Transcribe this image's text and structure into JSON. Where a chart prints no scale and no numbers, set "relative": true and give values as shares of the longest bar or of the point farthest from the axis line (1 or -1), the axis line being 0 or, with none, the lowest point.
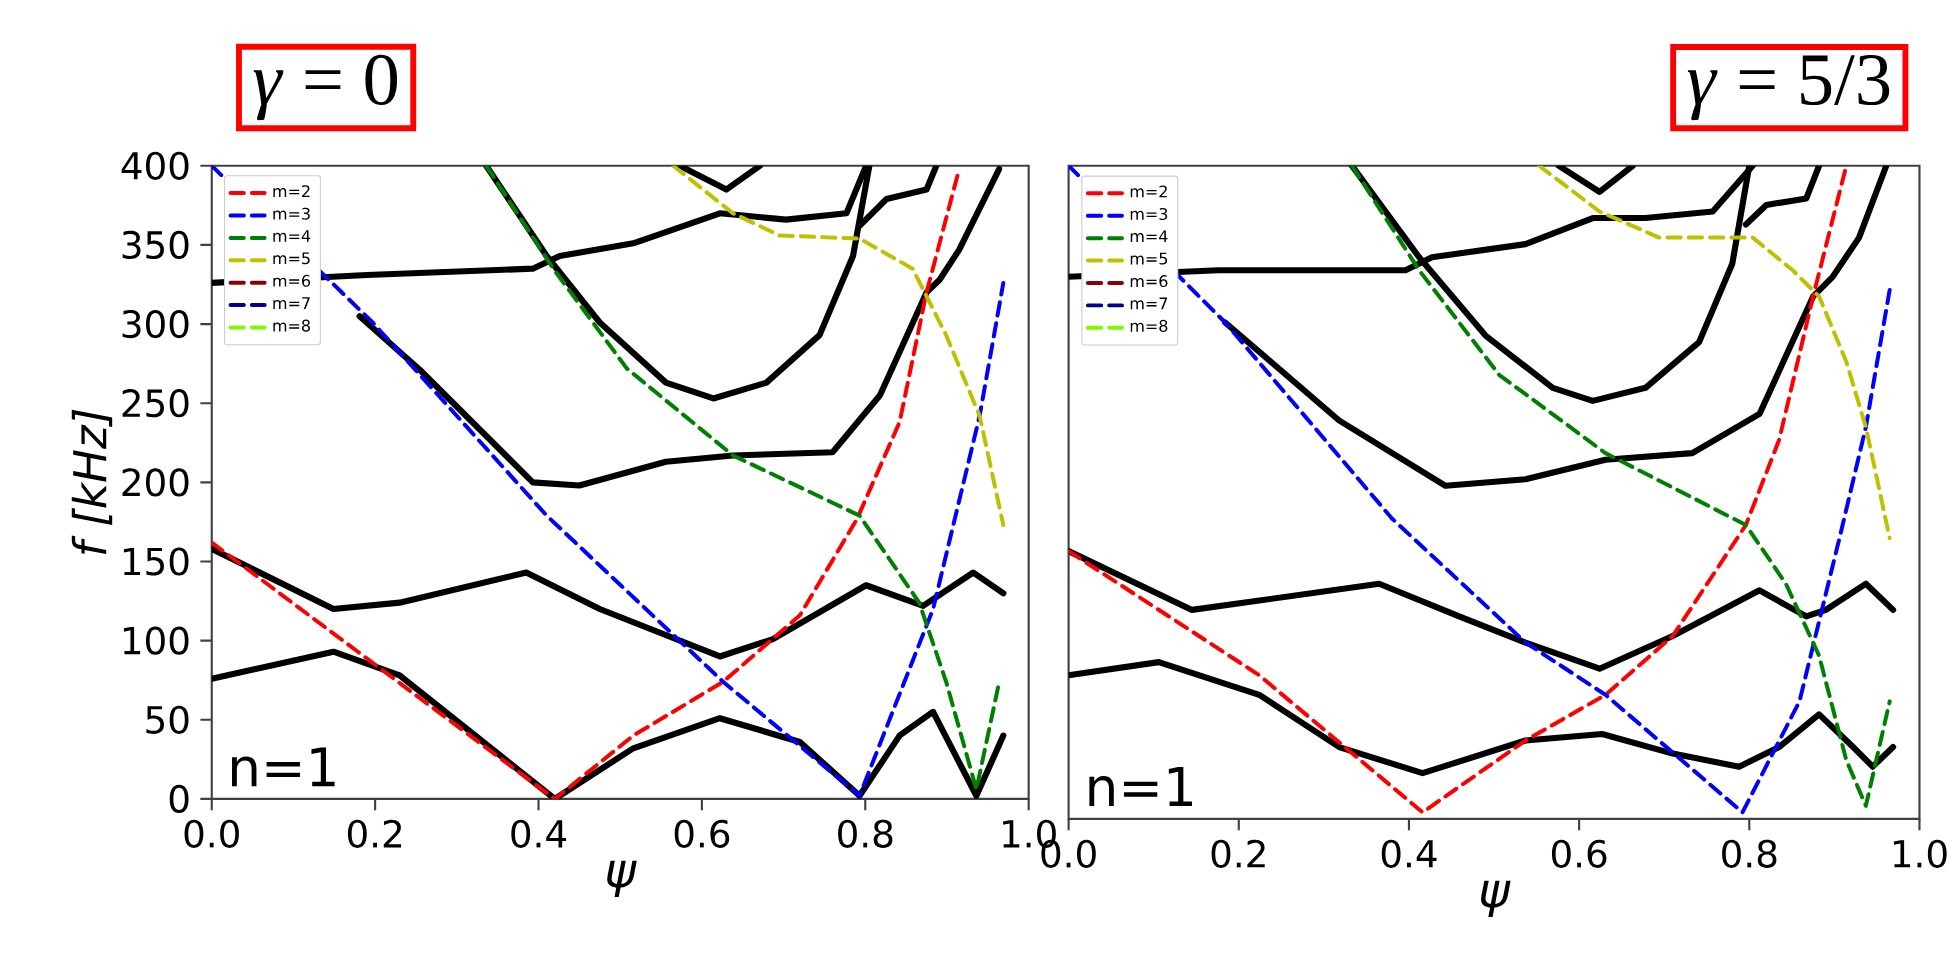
{
  "chart_data": [
    {
      "type": "line",
      "title": "*γ* = 0",
      "xlabel": "ψ",
      "ylabel": "f  [kHz]",
      "annotations": [
        "n=1"
      ],
      "xlim": [
        0,
        1
      ],
      "ylim": [
        0,
        400
      ],
      "xticks": [
        {
          "value": 0,
          "label": "0.0"
        },
        {
          "value": 0.2,
          "label": "0.2"
        },
        {
          "value": 0.4,
          "label": "0.4"
        },
        {
          "value": 0.6,
          "label": "0.6"
        },
        {
          "value": 0.8,
          "label": "0.8"
        },
        {
          "value": 1,
          "label": "1.0"
        }
      ],
      "yticks": [
        0,
        50,
        100,
        150,
        200,
        250,
        300,
        350,
        400
      ],
      "legend": "top left",
      "series": [
        {
          "color": "#000000",
          "line_style": "solid",
          "x": [
            0,
            0.149,
            0.23,
            0.42,
            0.516,
            0.622,
            0.72,
            0.793,
            0.842,
            0.883,
            0.936,
            0.969
          ],
          "values": [
            76,
            93,
            78,
            0,
            32,
            51,
            36,
            2,
            40,
            55,
            2,
            40
          ]
        },
        {
          "color": "#000000",
          "line_style": "solid",
          "x": [
            0,
            0.149,
            0.23,
            0.385,
            0.475,
            0.622,
            0.687,
            0.801,
            0.871,
            0.932,
            0.969
          ],
          "values": [
            158,
            120,
            124,
            143,
            120,
            90,
            101,
            135,
            122,
            143,
            130
          ]
        },
        {
          "color": "#000000",
          "line_style": "solid",
          "x": [
            0.181,
            0.255,
            0.393,
            0.45,
            0.556,
            0.638,
            0.76,
            0.818,
            0.875,
            0.891,
            0.915,
            0.964
          ],
          "values": [
            305,
            271,
            200,
            198,
            213,
            217,
            219,
            255,
            320,
            328,
            347,
            398
          ]
        },
        {
          "color": "#000000",
          "line_style": "solid",
          "x": [
            0,
            0.19,
            0.393,
            0.426,
            0.516,
            0.622,
            0.703,
            0.777,
            0.801
          ],
          "values": [
            326,
            331,
            335,
            343,
            351,
            370,
            366,
            370,
            400
          ]
        },
        {
          "color": "#000000",
          "line_style": "solid",
          "x": [
            0.336,
            0.41,
            0.475,
            0.556,
            0.614,
            0.679,
            0.744,
            0.785,
            0.805
          ],
          "values": [
            400,
            343,
            301,
            263,
            253,
            263,
            293,
            343,
            400
          ]
        },
        {
          "color": "#000000",
          "line_style": "solid",
          "x": [
            0.573,
            0.63,
            0.671
          ],
          "values": [
            400,
            385,
            400
          ]
        },
        {
          "color": "#000000",
          "line_style": "solid",
          "x": [
            0.793,
            0.826,
            0.875,
            0.887
          ],
          "values": [
            362,
            379,
            385,
            400
          ]
        },
        {
          "name": "m=2",
          "color": "#ff0000",
          "line_style": "dashed",
          "x": [
            0,
            0.42,
            0.516,
            0.626,
            0.72,
            0.79,
            0.842,
            0.875,
            0.915
          ],
          "values": [
            162,
            0,
            40,
            74,
            116,
            177,
            238,
            320,
            398
          ]
        },
        {
          "name": "m=3",
          "color": "#0000ff",
          "line_style": "dashed",
          "x": [
            0,
            0.197,
            0.41,
            0.626,
            0.793,
            0.883,
            0.94,
            0.969
          ],
          "values": [
            400,
            301,
            179,
            74,
            2,
            120,
            242,
            326
          ]
        },
        {
          "name": "m=4",
          "color": "#008000",
          "line_style": "dashed",
          "x": [
            0.336,
            0.418,
            0.508,
            0.638,
            0.793,
            0.866,
            0.899,
            0.936,
            0.964
          ],
          "values": [
            400,
            335,
            272,
            217,
            179,
            124,
            74,
            6,
            74
          ]
        },
        {
          "name": "m=5",
          "color": "#c0c000",
          "line_style": "dashed",
          "x": [
            0.565,
            0.638,
            0.695,
            0.793,
            0.858,
            0.899,
            0.94,
            0.969
          ],
          "values": [
            400,
            370,
            356,
            354,
            335,
            293,
            242,
            173
          ]
        },
        {
          "name": "m=6",
          "color": "#8b0000",
          "line_style": "dashed"
        },
        {
          "name": "m=7",
          "color": "#00008b",
          "line_style": "dashed"
        },
        {
          "name": "m=8",
          "color": "#7cfc00",
          "line_style": "dashed"
        }
      ]
    },
    {
      "type": "line",
      "title": "*γ* = 5/3",
      "xlabel": "ψ",
      "annotations": [
        "n=1"
      ],
      "xlim": [
        0,
        1
      ],
      "relative": true,
      "xticks": [
        {
          "value": 0,
          "label": "0.0"
        },
        {
          "value": 0.2,
          "label": "0.2"
        },
        {
          "value": 0.4,
          "label": "0.4"
        },
        {
          "value": 0.6,
          "label": "0.6"
        },
        {
          "value": 0.8,
          "label": "0.8"
        },
        {
          "value": 1,
          "label": "1.0"
        }
      ],
      "legend": "top left",
      "series": [
        {
          "color": "#000000",
          "line_style": "solid",
          "x": [
            0,
            0.106,
            0.224,
            0.318,
            0.416,
            0.537,
            0.627,
            0.71,
            0.788,
            0.835,
            0.882,
            0.922,
            0.945,
            0.969
          ],
          "values": [
            0.22,
            0.24,
            0.19,
            0.11,
            0.07,
            0.12,
            0.13,
            0.1,
            0.08,
            0.11,
            0.16,
            0.11,
            0.08,
            0.11
          ]
        },
        {
          "color": "#000000",
          "line_style": "solid",
          "x": [
            0,
            0.145,
            0.365,
            0.459,
            0.537,
            0.624,
            0.71,
            0.812,
            0.867,
            0.89,
            0.937,
            0.969
          ],
          "values": [
            0.41,
            0.32,
            0.36,
            0.31,
            0.27,
            0.23,
            0.28,
            0.35,
            0.31,
            0.32,
            0.36,
            0.32
          ]
        },
        {
          "color": "#000000",
          "line_style": "solid",
          "x": [
            0.184,
            0.318,
            0.443,
            0.537,
            0.631,
            0.733,
            0.812,
            0.875,
            0.898,
            0.929,
            0.961
          ],
          "values": [
            0.76,
            0.61,
            0.51,
            0.52,
            0.55,
            0.56,
            0.62,
            0.8,
            0.83,
            0.89,
            1
          ]
        },
        {
          "color": "#000000",
          "line_style": "solid",
          "x": [
            0,
            0.176,
            0.396,
            0.427,
            0.537,
            0.616,
            0.678,
            0.757,
            0.804
          ],
          "values": [
            0.83,
            0.84,
            0.84,
            0.86,
            0.88,
            0.92,
            0.92,
            0.93,
            1
          ]
        },
        {
          "color": "#000000",
          "line_style": "solid",
          "x": [
            0.333,
            0.412,
            0.49,
            0.569,
            0.616,
            0.678,
            0.741,
            0.78,
            0.8
          ],
          "values": [
            1,
            0.86,
            0.74,
            0.66,
            0.64,
            0.66,
            0.73,
            0.85,
            1
          ]
        },
        {
          "color": "#000000",
          "line_style": "solid",
          "x": [
            0.576,
            0.624,
            0.663
          ],
          "values": [
            1,
            0.96,
            1
          ]
        },
        {
          "color": "#000000",
          "line_style": "solid",
          "x": [
            0.796,
            0.82,
            0.867,
            0.882
          ],
          "values": [
            0.91,
            0.94,
            0.95,
            1
          ]
        },
        {
          "name": "m=2",
          "color": "#ff0000",
          "line_style": "dashed",
          "x": [
            0,
            0.224,
            0.416,
            0.537,
            0.631,
            0.71,
            0.796,
            0.835,
            0.875,
            0.914
          ],
          "values": [
            0.41,
            0.22,
            0.01,
            0.12,
            0.19,
            0.28,
            0.45,
            0.58,
            0.8,
            1
          ]
        },
        {
          "name": "m=3",
          "color": "#0000ff",
          "line_style": "dashed",
          "x": [
            0,
            0.184,
            0.38,
            0.537,
            0.631,
            0.792,
            0.859,
            0.906,
            0.937,
            0.965
          ],
          "values": [
            1,
            0.76,
            0.46,
            0.27,
            0.19,
            0.01,
            0.18,
            0.43,
            0.6,
            0.81
          ]
        },
        {
          "name": "m=4",
          "color": "#008000",
          "line_style": "dashed",
          "x": [
            0.333,
            0.412,
            0.506,
            0.631,
            0.796,
            0.843,
            0.882,
            0.914,
            0.937,
            0.965
          ],
          "values": [
            1,
            0.84,
            0.68,
            0.56,
            0.45,
            0.36,
            0.25,
            0.09,
            0.02,
            0.18
          ]
        },
        {
          "name": "m=5",
          "color": "#c0c000",
          "line_style": "dashed",
          "x": [
            0.553,
            0.624,
            0.694,
            0.804,
            0.851,
            0.882,
            0.914,
            0.937,
            0.965
          ],
          "values": [
            1,
            0.93,
            0.89,
            0.89,
            0.84,
            0.8,
            0.7,
            0.6,
            0.43
          ]
        },
        {
          "name": "m=6",
          "color": "#8b0000",
          "line_style": "dashed"
        },
        {
          "name": "m=7",
          "color": "#00008b",
          "line_style": "dashed"
        },
        {
          "name": "m=8",
          "color": "#7cfc00",
          "line_style": "dashed"
        }
      ]
    }
  ]
}
